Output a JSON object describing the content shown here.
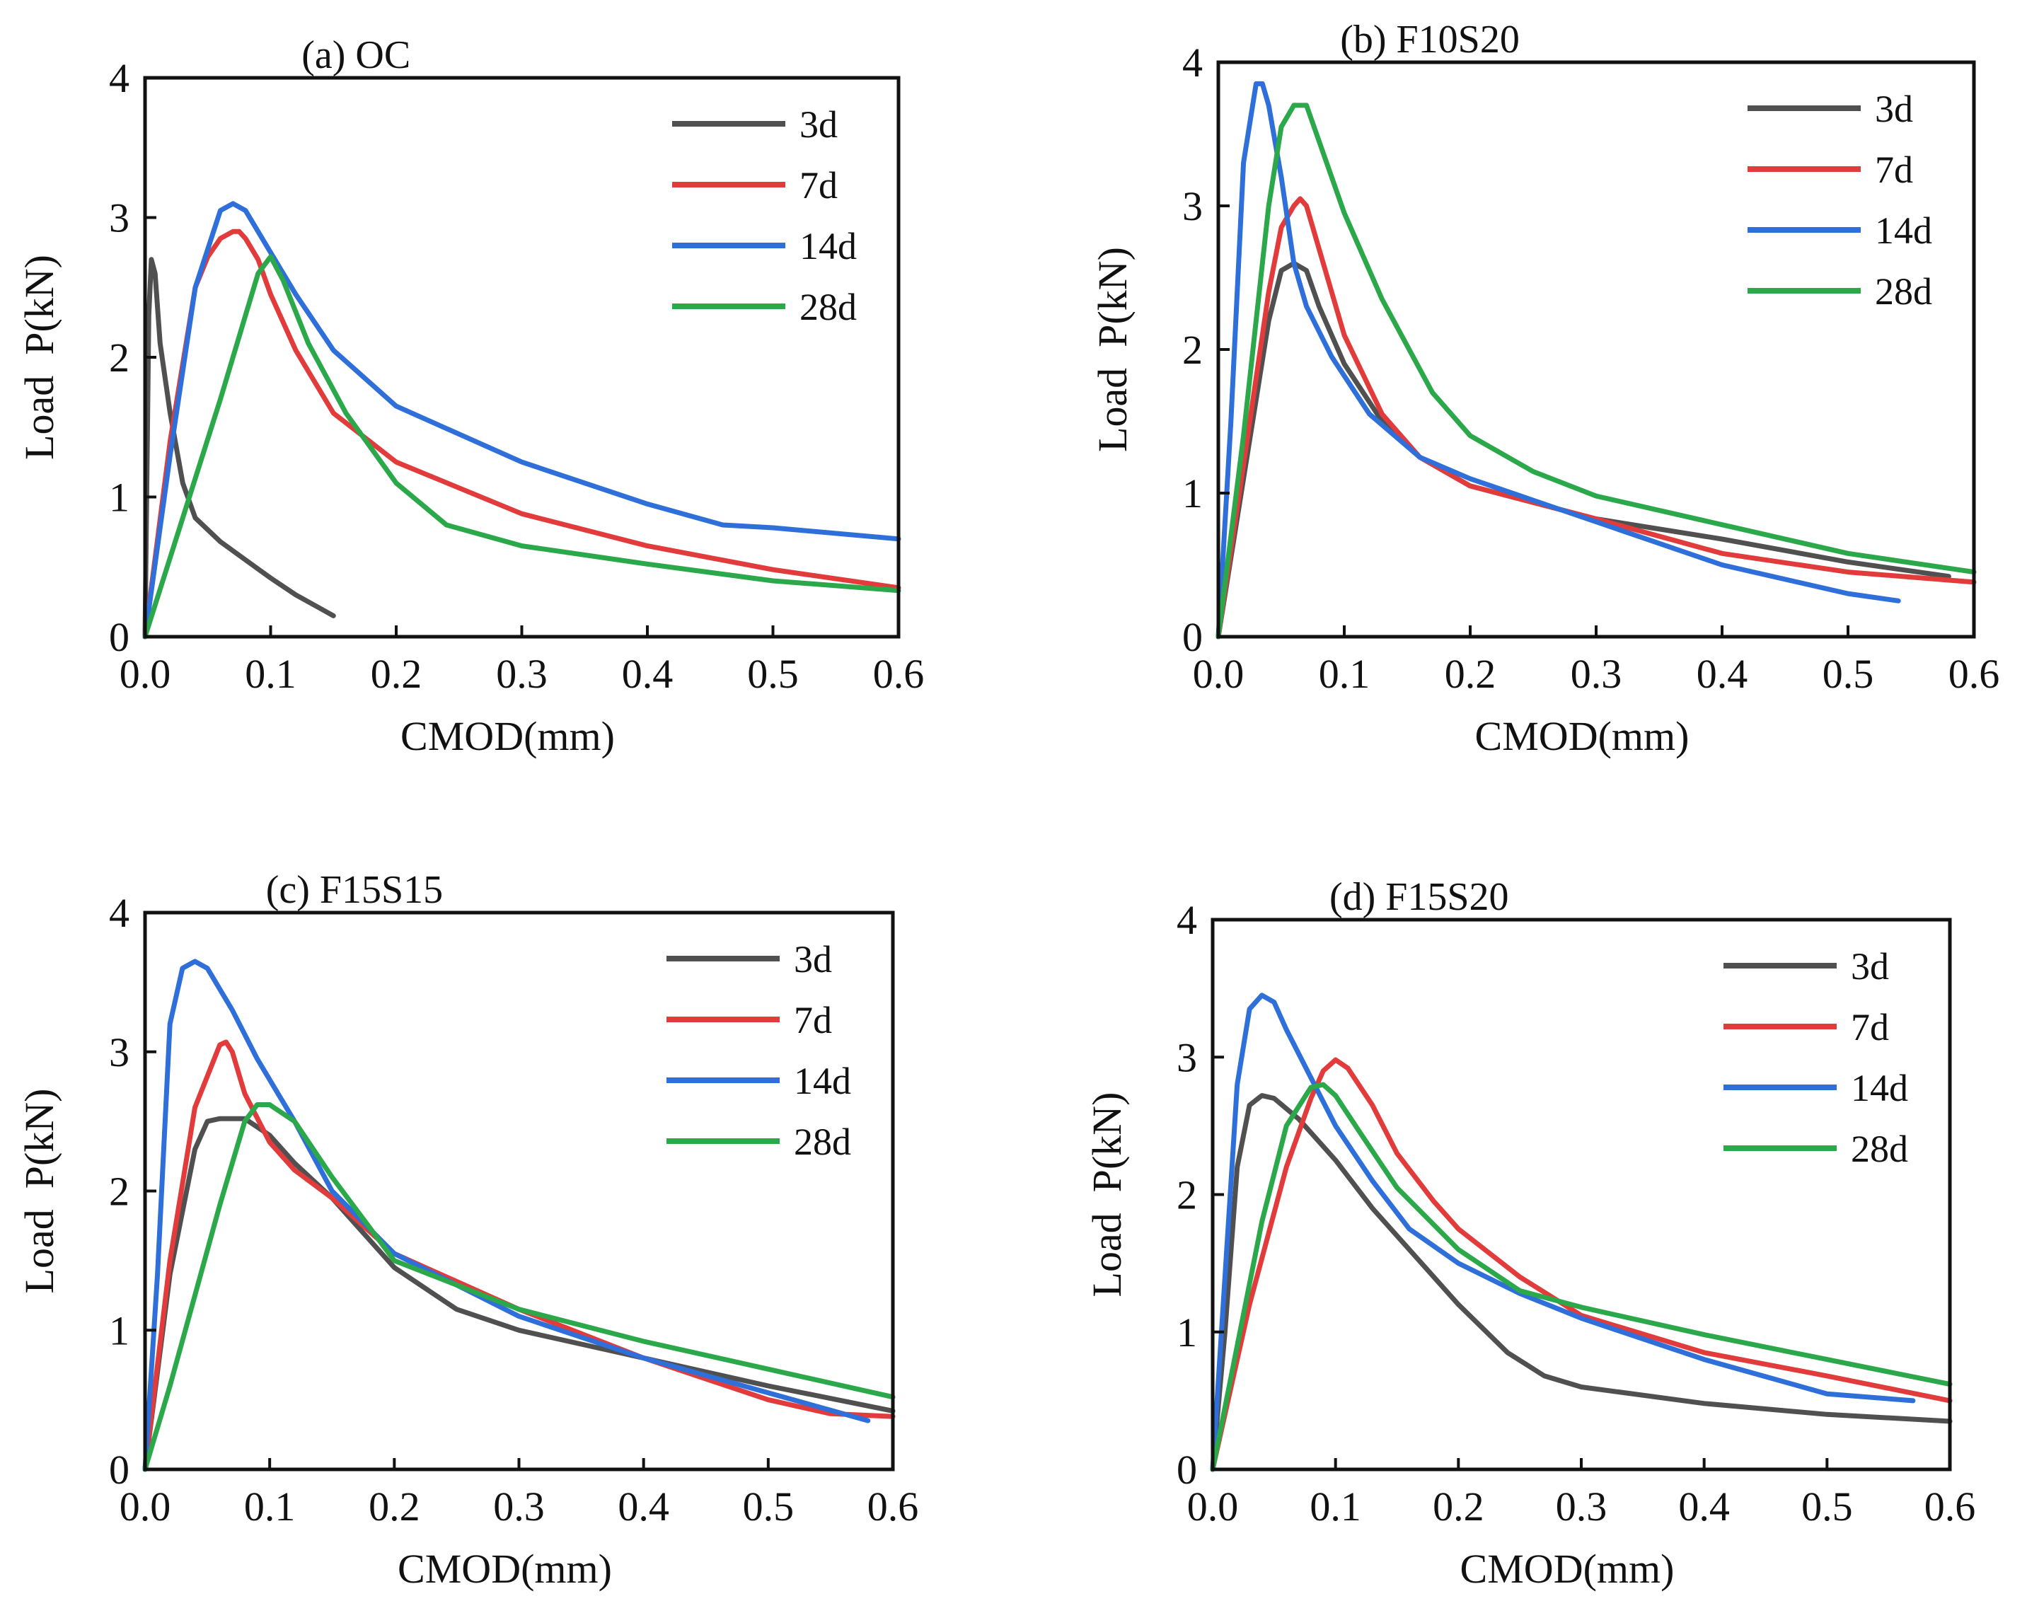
{
  "colors": {
    "3d": "#505050",
    "7d": "#e23b3b",
    "14d": "#2f6fd9",
    "28d": "#2ba84a"
  },
  "chart_data": [
    {
      "type": "line",
      "title": "(a) OC",
      "xlabel": "CMOD(mm)",
      "ylabel": "Load  P(kN)",
      "xlim": [
        0.0,
        0.6
      ],
      "ylim": [
        0,
        4
      ],
      "xticks": [
        "0.0",
        "0.1",
        "0.2",
        "0.3",
        "0.4",
        "0.5",
        "0.6"
      ],
      "yticks": [
        "0",
        "1",
        "2",
        "3",
        "4"
      ],
      "legend": "top-right",
      "series": [
        {
          "name": "3d",
          "x": [
            0.0,
            0.003,
            0.005,
            0.008,
            0.012,
            0.02,
            0.03,
            0.04,
            0.06,
            0.08,
            0.1,
            0.12,
            0.14,
            0.15
          ],
          "y": [
            0.0,
            2.3,
            2.7,
            2.6,
            2.1,
            1.6,
            1.1,
            0.85,
            0.68,
            0.55,
            0.42,
            0.3,
            0.2,
            0.15
          ]
        },
        {
          "name": "7d",
          "x": [
            0.0,
            0.02,
            0.04,
            0.05,
            0.06,
            0.07,
            0.075,
            0.08,
            0.09,
            0.1,
            0.12,
            0.15,
            0.2,
            0.3,
            0.4,
            0.5,
            0.6
          ],
          "y": [
            0.0,
            1.4,
            2.5,
            2.72,
            2.85,
            2.9,
            2.9,
            2.85,
            2.7,
            2.45,
            2.05,
            1.6,
            1.25,
            0.88,
            0.65,
            0.48,
            0.35
          ]
        },
        {
          "name": "14d",
          "x": [
            0.0,
            0.02,
            0.04,
            0.06,
            0.07,
            0.08,
            0.09,
            0.1,
            0.12,
            0.15,
            0.2,
            0.3,
            0.4,
            0.46,
            0.5,
            0.6
          ],
          "y": [
            0.0,
            1.3,
            2.5,
            3.05,
            3.1,
            3.05,
            2.9,
            2.75,
            2.45,
            2.05,
            1.65,
            1.25,
            0.95,
            0.8,
            0.78,
            0.7
          ]
        },
        {
          "name": "28d",
          "x": [
            0.0,
            0.03,
            0.06,
            0.08,
            0.09,
            0.1,
            0.11,
            0.13,
            0.16,
            0.2,
            0.24,
            0.3,
            0.4,
            0.5,
            0.6
          ],
          "y": [
            0.0,
            0.85,
            1.7,
            2.3,
            2.6,
            2.72,
            2.55,
            2.1,
            1.6,
            1.1,
            0.8,
            0.65,
            0.52,
            0.4,
            0.33
          ]
        }
      ]
    },
    {
      "type": "line",
      "title": "(b) F10S20",
      "xlabel": "CMOD(mm)",
      "ylabel": "Load  P(kN)",
      "xlim": [
        0.0,
        0.6
      ],
      "ylim": [
        0,
        4
      ],
      "xticks": [
        "0.0",
        "0.1",
        "0.2",
        "0.3",
        "0.4",
        "0.5",
        "0.6"
      ],
      "yticks": [
        "0",
        "1",
        "2",
        "3",
        "4"
      ],
      "legend": "top-right",
      "series": [
        {
          "name": "3d",
          "x": [
            0.0,
            0.02,
            0.04,
            0.05,
            0.06,
            0.07,
            0.08,
            0.1,
            0.13,
            0.16,
            0.2,
            0.3,
            0.4,
            0.5,
            0.58
          ],
          "y": [
            0.0,
            1.1,
            2.2,
            2.55,
            2.6,
            2.55,
            2.3,
            1.9,
            1.5,
            1.25,
            1.05,
            0.82,
            0.68,
            0.52,
            0.42
          ]
        },
        {
          "name": "7d",
          "x": [
            0.0,
            0.02,
            0.04,
            0.05,
            0.06,
            0.065,
            0.07,
            0.08,
            0.1,
            0.13,
            0.16,
            0.2,
            0.3,
            0.4,
            0.5,
            0.6
          ],
          "y": [
            0.0,
            1.2,
            2.4,
            2.85,
            3.0,
            3.05,
            3.0,
            2.7,
            2.1,
            1.55,
            1.25,
            1.05,
            0.82,
            0.58,
            0.45,
            0.38
          ]
        },
        {
          "name": "14d",
          "x": [
            0.0,
            0.01,
            0.02,
            0.03,
            0.035,
            0.04,
            0.05,
            0.06,
            0.07,
            0.09,
            0.12,
            0.16,
            0.2,
            0.3,
            0.4,
            0.5,
            0.54
          ],
          "y": [
            0.0,
            1.5,
            3.3,
            3.85,
            3.85,
            3.7,
            3.2,
            2.6,
            2.3,
            1.95,
            1.55,
            1.25,
            1.1,
            0.8,
            0.5,
            0.3,
            0.25
          ]
        },
        {
          "name": "28d",
          "x": [
            0.0,
            0.02,
            0.04,
            0.05,
            0.06,
            0.07,
            0.08,
            0.1,
            0.13,
            0.17,
            0.2,
            0.25,
            0.3,
            0.4,
            0.5,
            0.6
          ],
          "y": [
            0.0,
            1.4,
            3.0,
            3.55,
            3.7,
            3.7,
            3.45,
            2.95,
            2.35,
            1.7,
            1.4,
            1.15,
            0.98,
            0.78,
            0.58,
            0.45
          ]
        }
      ]
    },
    {
      "type": "line",
      "title": "(c) F15S15",
      "xlabel": "CMOD(mm)",
      "ylabel": "Load  P(kN)",
      "xlim": [
        0.0,
        0.6
      ],
      "ylim": [
        0,
        4
      ],
      "xticks": [
        "0.0",
        "0.1",
        "0.2",
        "0.3",
        "0.4",
        "0.5",
        "0.6"
      ],
      "yticks": [
        "0",
        "1",
        "2",
        "3",
        "4"
      ],
      "legend": "top-right",
      "series": [
        {
          "name": "3d",
          "x": [
            0.0,
            0.02,
            0.04,
            0.05,
            0.06,
            0.08,
            0.1,
            0.12,
            0.15,
            0.2,
            0.25,
            0.3,
            0.4,
            0.5,
            0.6
          ],
          "y": [
            0.0,
            1.4,
            2.3,
            2.5,
            2.52,
            2.52,
            2.4,
            2.2,
            1.95,
            1.45,
            1.15,
            1.0,
            0.8,
            0.6,
            0.42
          ]
        },
        {
          "name": "7d",
          "x": [
            0.0,
            0.02,
            0.04,
            0.06,
            0.065,
            0.07,
            0.08,
            0.1,
            0.12,
            0.15,
            0.2,
            0.3,
            0.4,
            0.5,
            0.55,
            0.6
          ],
          "y": [
            0.0,
            1.5,
            2.6,
            3.05,
            3.07,
            3.0,
            2.7,
            2.35,
            2.15,
            1.95,
            1.55,
            1.15,
            0.8,
            0.5,
            0.4,
            0.38
          ]
        },
        {
          "name": "14d",
          "x": [
            0.0,
            0.01,
            0.02,
            0.03,
            0.04,
            0.05,
            0.07,
            0.09,
            0.12,
            0.15,
            0.2,
            0.3,
            0.4,
            0.5,
            0.58
          ],
          "y": [
            0.0,
            1.4,
            3.2,
            3.6,
            3.65,
            3.6,
            3.3,
            2.95,
            2.5,
            2.0,
            1.55,
            1.1,
            0.8,
            0.55,
            0.35
          ]
        },
        {
          "name": "28d",
          "x": [
            0.0,
            0.02,
            0.04,
            0.06,
            0.08,
            0.09,
            0.1,
            0.12,
            0.15,
            0.2,
            0.3,
            0.4,
            0.5,
            0.6
          ],
          "y": [
            0.0,
            0.6,
            1.25,
            1.9,
            2.5,
            2.62,
            2.62,
            2.5,
            2.1,
            1.5,
            1.15,
            0.92,
            0.72,
            0.52
          ]
        }
      ]
    },
    {
      "type": "line",
      "title": "(d) F15S20",
      "xlabel": "CMOD(mm)",
      "ylabel": "Load  P(kN)",
      "xlim": [
        0.0,
        0.6
      ],
      "ylim": [
        0,
        4
      ],
      "xticks": [
        "0.0",
        "0.1",
        "0.2",
        "0.3",
        "0.4",
        "0.5",
        "0.6"
      ],
      "yticks": [
        "0",
        "1",
        "2",
        "3",
        "4"
      ],
      "legend": "top-right",
      "series": [
        {
          "name": "3d",
          "x": [
            0.0,
            0.01,
            0.02,
            0.03,
            0.04,
            0.05,
            0.07,
            0.1,
            0.13,
            0.17,
            0.2,
            0.24,
            0.27,
            0.3,
            0.4,
            0.5,
            0.6
          ],
          "y": [
            0.0,
            1.0,
            2.2,
            2.65,
            2.72,
            2.7,
            2.55,
            2.25,
            1.9,
            1.5,
            1.2,
            0.85,
            0.68,
            0.6,
            0.48,
            0.4,
            0.35
          ]
        },
        {
          "name": "7d",
          "x": [
            0.0,
            0.03,
            0.06,
            0.08,
            0.09,
            0.1,
            0.11,
            0.13,
            0.15,
            0.18,
            0.2,
            0.25,
            0.3,
            0.4,
            0.5,
            0.6
          ],
          "y": [
            0.0,
            1.2,
            2.2,
            2.7,
            2.9,
            2.98,
            2.92,
            2.65,
            2.3,
            1.95,
            1.75,
            1.4,
            1.12,
            0.85,
            0.68,
            0.5
          ]
        },
        {
          "name": "14d",
          "x": [
            0.0,
            0.01,
            0.02,
            0.03,
            0.04,
            0.05,
            0.06,
            0.08,
            0.1,
            0.13,
            0.16,
            0.2,
            0.25,
            0.3,
            0.4,
            0.5,
            0.57
          ],
          "y": [
            0.0,
            1.4,
            2.8,
            3.35,
            3.45,
            3.4,
            3.2,
            2.85,
            2.5,
            2.1,
            1.75,
            1.5,
            1.28,
            1.1,
            0.8,
            0.55,
            0.5
          ]
        },
        {
          "name": "28d",
          "x": [
            0.0,
            0.02,
            0.04,
            0.06,
            0.08,
            0.09,
            0.1,
            0.12,
            0.15,
            0.2,
            0.25,
            0.3,
            0.4,
            0.5,
            0.6
          ],
          "y": [
            0.0,
            0.9,
            1.8,
            2.5,
            2.78,
            2.8,
            2.72,
            2.45,
            2.05,
            1.6,
            1.3,
            1.18,
            0.98,
            0.8,
            0.62
          ]
        }
      ]
    }
  ]
}
